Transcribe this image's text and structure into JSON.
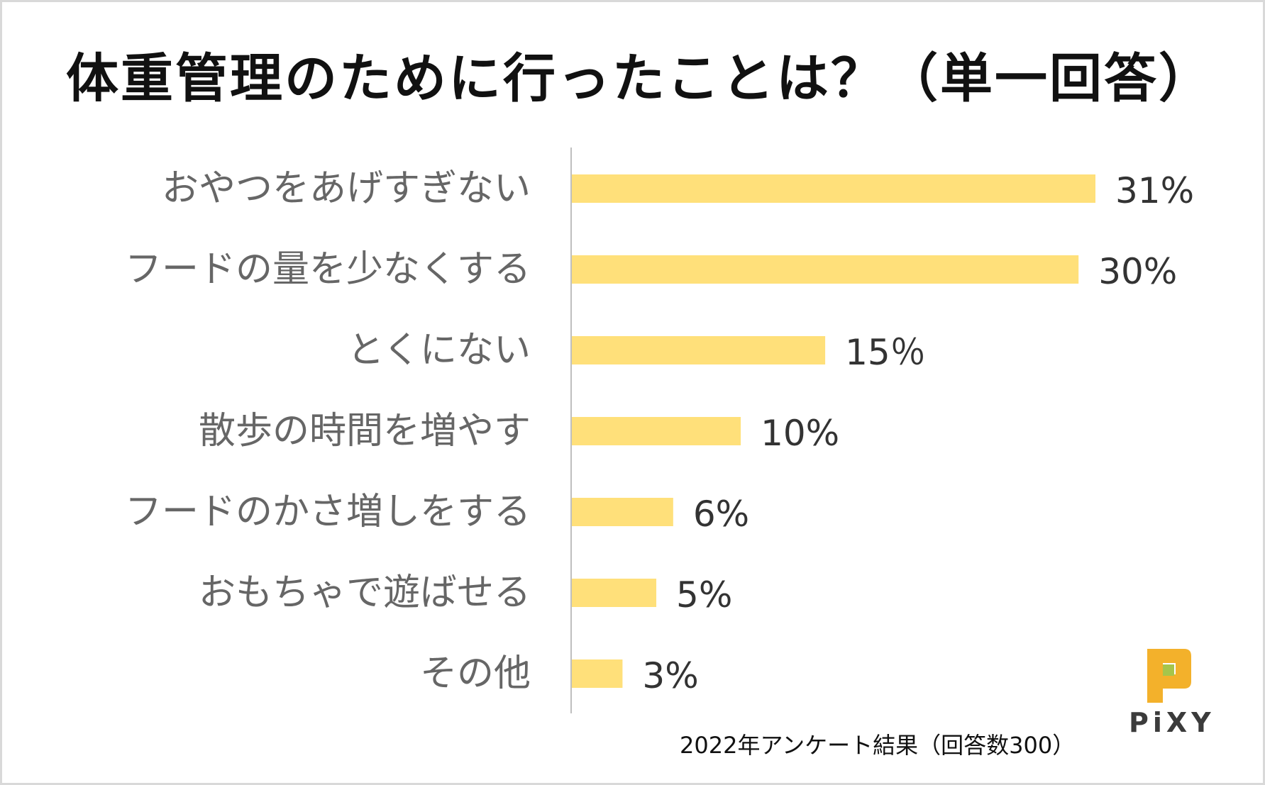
{
  "chart_data": {
    "type": "bar",
    "orientation": "horizontal",
    "title": "体重管理のために行ったことは？（単一回答）",
    "categories": [
      "おやつをあげすぎない",
      "フードの量を少なくする",
      "とくにない",
      "散歩の時間を増やす",
      "フードのかさ増しをする",
      "おもちゃで遊ばせる",
      "その他"
    ],
    "values": [
      31,
      30,
      15,
      10,
      6,
      5,
      3
    ],
    "value_labels": [
      "31%",
      "30%",
      "15％",
      "10%",
      "6%",
      "5%",
      "3%"
    ],
    "unit": "%",
    "xlim": [
      0,
      31
    ],
    "grid": false,
    "legend": "none",
    "bar_color": "#ffe07a",
    "axis_color": "#bfbfbf"
  },
  "footnote": "2022年アンケート結果（回答数300）",
  "logo": {
    "text": "PiXY",
    "icon": "pixy-logo-icon",
    "colors": {
      "mark": "#f3b12b",
      "accent": "#a6c54b",
      "text": "#3b3b3b"
    }
  }
}
